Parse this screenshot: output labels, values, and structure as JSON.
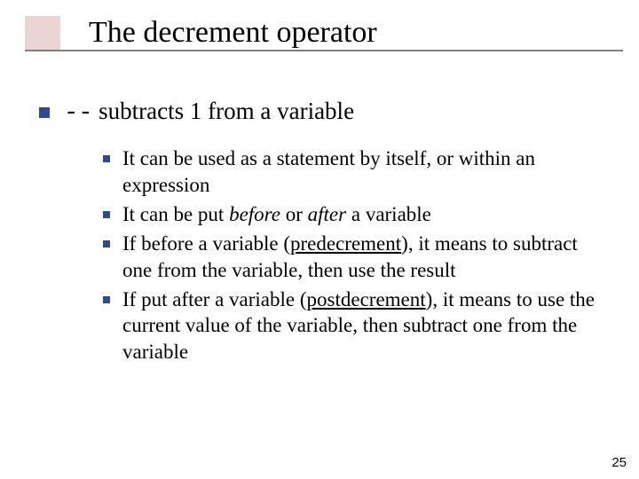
{
  "title": "The decrement operator",
  "main": {
    "operator": "--",
    "rest": " subtracts 1 from a variable"
  },
  "subs": {
    "s1": "It can be used as a statement by itself, or within an expression",
    "s2a": "It can be put ",
    "s2b": "before",
    "s2c": " or ",
    "s2d": "after",
    "s2e": " a variable",
    "s3a": "If before a variable (",
    "s3b": "predecrement",
    "s3c": "), it means to subtract one from the variable, then use the result",
    "s4a": "If put after a variable (",
    "s4b": "postdecrement",
    "s4c": "), it means to use the current value of the variable, then subtract one from the variable"
  },
  "pageNumber": "25",
  "colors": {
    "bullet": "#2f4b8a",
    "accent": "#ead5d5",
    "underline": "#808080",
    "text": "#000000",
    "background": "#ffffff"
  }
}
